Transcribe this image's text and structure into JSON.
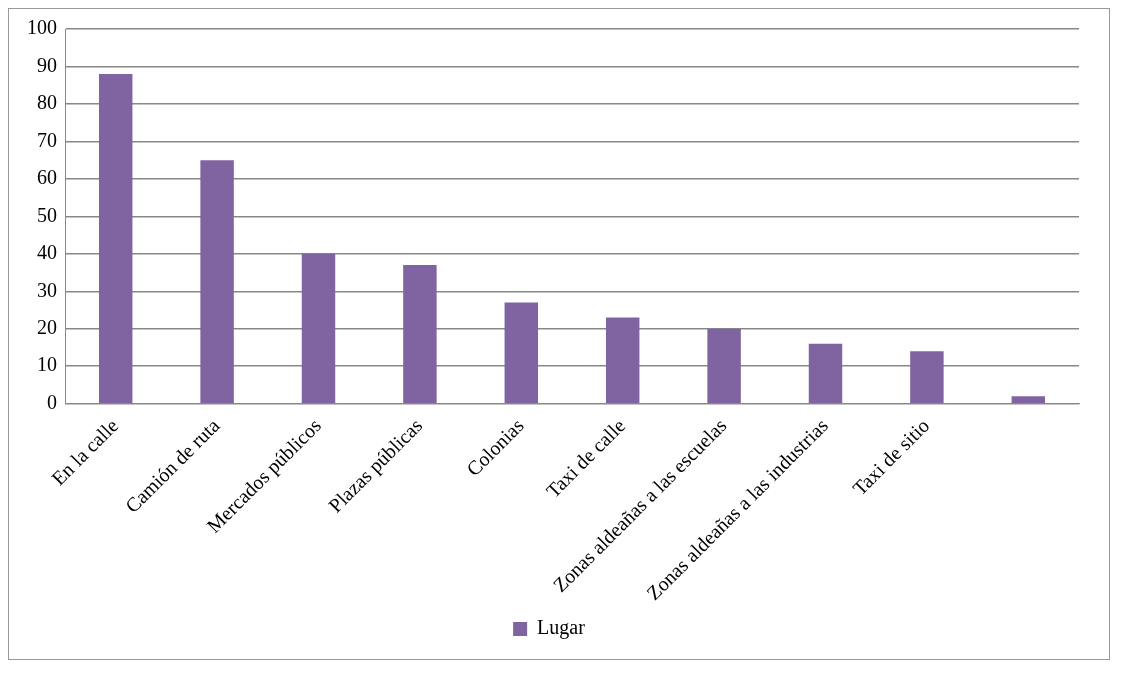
{
  "chart_data": {
    "type": "bar",
    "categories": [
      "En la calle",
      "Camión de ruta",
      "Mercados públicos",
      "Plazas públicas",
      "Colonias",
      "Taxi de calle",
      "Zonas aldeañas a las escuelas",
      "Zonas aldeañas a las industrias",
      "Taxi de sitio",
      null
    ],
    "series": [
      {
        "name": "Lugar",
        "color": "#8064a2",
        "values": [
          88,
          65,
          40,
          37,
          27,
          23,
          20,
          16,
          14,
          2
        ]
      }
    ],
    "ylim": [
      0,
      100
    ],
    "yticks": [
      0,
      10,
      20,
      30,
      40,
      50,
      60,
      70,
      80,
      90,
      100
    ],
    "grid": "y",
    "legend": "bottom"
  }
}
